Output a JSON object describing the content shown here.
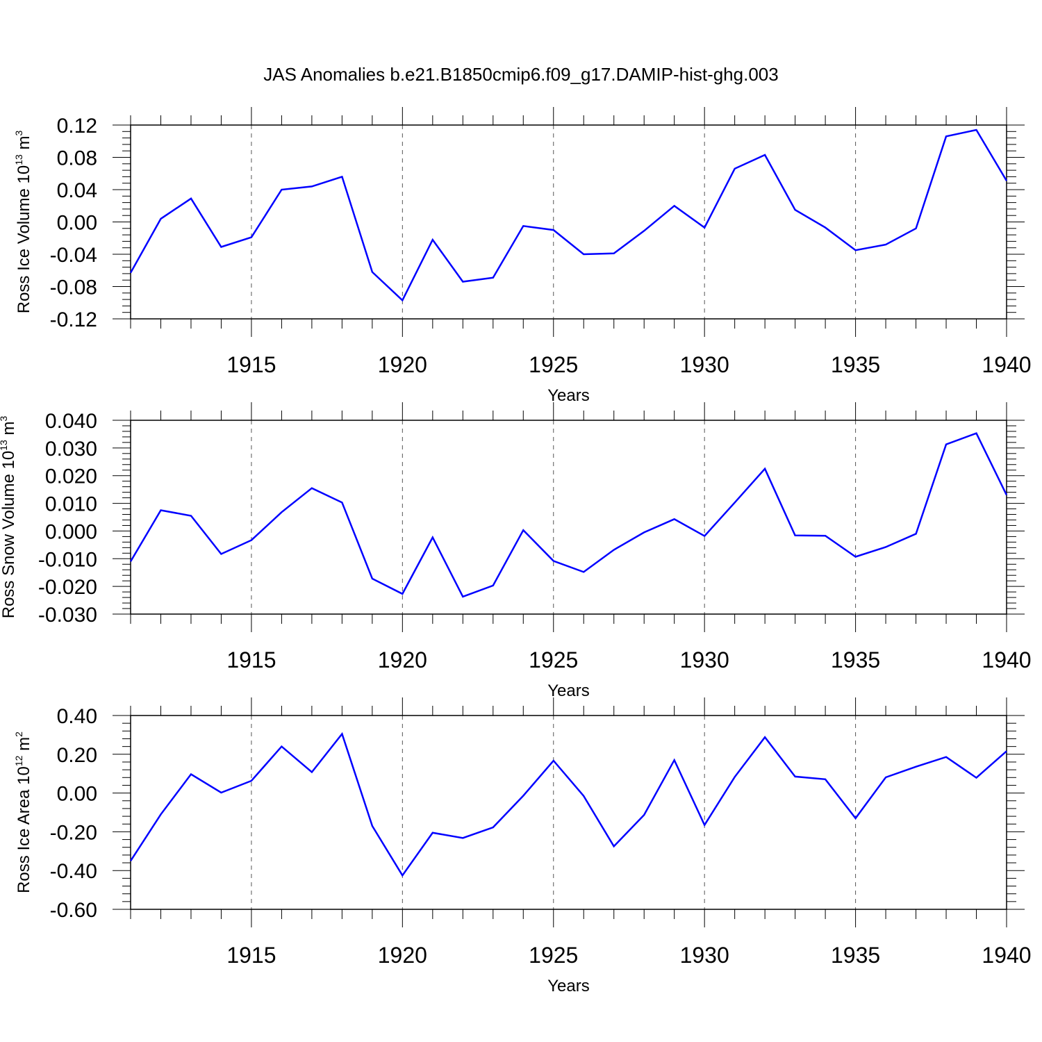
{
  "title": "JAS Anomalies b.e21.B1850cmip6.f09_g17.DAMIP-hist-ghg.003",
  "chart_data": [
    {
      "type": "line",
      "ylabel": {
        "text": "Ross Ice Volume 10",
        "sup1": "13",
        "mid": " m",
        "sup2": "3"
      },
      "xlabel": "Years",
      "xlim": [
        1911,
        1940
      ],
      "ylim": [
        -0.12,
        0.12
      ],
      "xticks": [
        "1915",
        "1920",
        "1925",
        "1930",
        "1935",
        "1940"
      ],
      "yticks": [
        "-0.12",
        "-0.08",
        "-0.04",
        "0.00",
        "0.04",
        "0.08",
        "0.12"
      ],
      "color": "#0000ff",
      "x": [
        1911,
        1912,
        1913,
        1914,
        1915,
        1916,
        1917,
        1918,
        1919,
        1920,
        1921,
        1922,
        1923,
        1924,
        1925,
        1926,
        1927,
        1928,
        1929,
        1930,
        1931,
        1932,
        1933,
        1934,
        1935,
        1936,
        1937,
        1938,
        1939,
        1940
      ],
      "values": [
        -0.063,
        0.004,
        0.029,
        -0.031,
        -0.019,
        0.04,
        0.044,
        0.056,
        -0.062,
        -0.097,
        -0.022,
        -0.074,
        -0.069,
        -0.005,
        -0.01,
        -0.04,
        -0.039,
        -0.011,
        0.02,
        -0.007,
        0.066,
        0.083,
        0.015,
        -0.007,
        -0.035,
        -0.028,
        -0.008,
        0.106,
        0.114,
        0.051
      ]
    },
    {
      "type": "line",
      "ylabel": {
        "text": "Ross Snow Volume 10",
        "sup1": "13",
        "mid": " m",
        "sup2": "3"
      },
      "xlabel": "Years",
      "xlim": [
        1911,
        1940
      ],
      "ylim": [
        -0.03,
        0.04
      ],
      "xticks": [
        "1915",
        "1920",
        "1925",
        "1930",
        "1935",
        "1940"
      ],
      "yticks": [
        "-0.030",
        "-0.020",
        "-0.010",
        "0.000",
        "0.010",
        "0.020",
        "0.030",
        "0.040"
      ],
      "color": "#0000ff",
      "x": [
        1911,
        1912,
        1913,
        1914,
        1915,
        1916,
        1917,
        1918,
        1919,
        1920,
        1921,
        1922,
        1923,
        1924,
        1925,
        1926,
        1927,
        1928,
        1929,
        1930,
        1931,
        1932,
        1933,
        1934,
        1935,
        1936,
        1937,
        1938,
        1939,
        1940
      ],
      "values": [
        -0.011,
        0.0075,
        0.0055,
        -0.0083,
        -0.0033,
        0.0068,
        0.0155,
        0.0103,
        -0.0172,
        -0.0227,
        -0.0023,
        -0.0237,
        -0.0197,
        0.0003,
        -0.0108,
        -0.0148,
        -0.0068,
        -0.0005,
        0.0043,
        -0.0018,
        0.0103,
        0.0225,
        -0.0016,
        -0.0017,
        -0.0093,
        -0.0058,
        -0.001,
        0.0313,
        0.0353,
        0.013
      ]
    },
    {
      "type": "line",
      "ylabel": {
        "text": "Ross Ice Area 10",
        "sup1": "12",
        "mid": " m",
        "sup2": "2"
      },
      "xlabel": "Years",
      "xlim": [
        1911,
        1940
      ],
      "ylim": [
        -0.6,
        0.4
      ],
      "xticks": [
        "1915",
        "1920",
        "1925",
        "1930",
        "1935",
        "1940"
      ],
      "yticks": [
        "-0.60",
        "-0.40",
        "-0.20",
        "0.00",
        "0.20",
        "0.40"
      ],
      "color": "#0000ff",
      "x": [
        1911,
        1912,
        1913,
        1914,
        1915,
        1916,
        1917,
        1918,
        1919,
        1920,
        1921,
        1922,
        1923,
        1924,
        1925,
        1926,
        1927,
        1928,
        1929,
        1930,
        1931,
        1932,
        1933,
        1934,
        1935,
        1936,
        1937,
        1938,
        1939,
        1940
      ],
      "values": [
        -0.35,
        -0.11,
        0.097,
        0.002,
        0.063,
        0.24,
        0.108,
        0.305,
        -0.17,
        -0.425,
        -0.205,
        -0.232,
        -0.177,
        -0.014,
        0.167,
        -0.015,
        -0.275,
        -0.113,
        0.17,
        -0.165,
        0.083,
        0.288,
        0.085,
        0.071,
        -0.13,
        0.081,
        0.136,
        0.186,
        0.079,
        0.216
      ]
    }
  ]
}
